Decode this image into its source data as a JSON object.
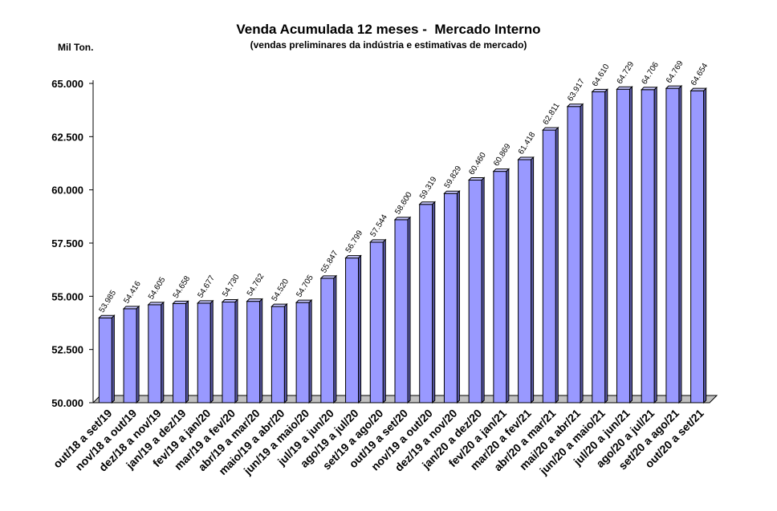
{
  "chart_data": {
    "type": "bar",
    "title": "Venda Acumulada 12 meses -  Mercado Interno",
    "subtitle": "(vendas preliminares da indústria e estimativas de mercado)",
    "ylabel": "Mil Ton.",
    "xlabel": "",
    "ylim": [
      50000,
      65000
    ],
    "yticks": [
      50000,
      52500,
      55000,
      57500,
      60000,
      62500,
      65000
    ],
    "ytick_labels": [
      "50.000",
      "52.500",
      "55.000",
      "57.500",
      "60.000",
      "62.500",
      "65.000"
    ],
    "grid": false,
    "legend": "none",
    "bar_color": "#9999ff",
    "categories": [
      "out/18 a set/19",
      "nov/18 a out/19",
      "dez/18 a nov/19",
      "jan/19 a dez/19",
      "fev/19 a jan/20",
      "mar/19 a fev/20",
      "abr/19 a mar/20",
      "maio/19 a abr/20",
      "jun/19 a maio/20",
      "jul/19 a jun/20",
      "ago/19 a jul/20",
      "set/19 a ago/20",
      "out/19 a set/20",
      "nov/19 a out/20",
      "dez/19 a nov/20",
      "jan/20 a dez/20",
      "fev/20 a jan/21",
      "mar/20 a fev/21",
      "abr/20 a mar/21",
      "mai/20 a abr/21",
      "jun/20 a maio/21",
      "jul/20 a jun/21",
      "ago/20 a jul/21",
      "set/20 a ago/21",
      "out/20 a set/21"
    ],
    "values": [
      53985,
      54416,
      54605,
      54658,
      54677,
      54730,
      54762,
      54520,
      54705,
      55847,
      56799,
      57544,
      58600,
      59319,
      59829,
      60460,
      60869,
      61418,
      62811,
      63917,
      64610,
      64729,
      64706,
      64769,
      64654
    ],
    "value_labels": [
      "53.985",
      "54.416",
      "54.605",
      "54.658",
      "54.677",
      "54.730",
      "54.762",
      "54.520",
      "54.705",
      "55.847",
      "56.799",
      "57.544",
      "58.600",
      "59.319",
      "59.829",
      "60.460",
      "60.869",
      "61.418",
      "62.811",
      "63.917",
      "64.610",
      "64.729",
      "64.706",
      "64.769",
      "64.654"
    ]
  }
}
